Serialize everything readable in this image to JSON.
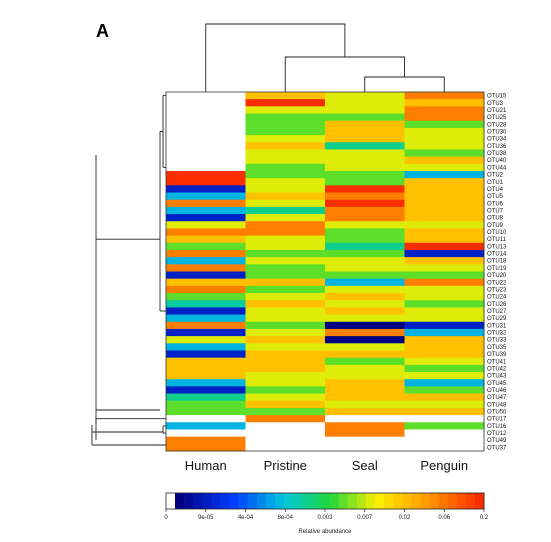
{
  "panel_label": "A",
  "chart_data": {
    "type": "heatmap",
    "title": "",
    "columns": [
      "Human",
      "Pristine",
      "Seal",
      "Penguin"
    ],
    "rows": [
      "OTU15",
      "OTU3",
      "OTU21",
      "OTU25",
      "OTU28",
      "OTU30",
      "OTU34",
      "OTU36",
      "OTU38",
      "OTU40",
      "OTU44",
      "OTU2",
      "OTU1",
      "OTU4",
      "OTU5",
      "OTU6",
      "OTU7",
      "OTU8",
      "OTU9",
      "OTU10",
      "OTU11",
      "OTU13",
      "OTU14",
      "OTU18",
      "OTU19",
      "OTU20",
      "OTU22",
      "OTU23",
      "OTU24",
      "OTU26",
      "OTU27",
      "OTU29",
      "OTU31",
      "OTU32",
      "OTU33",
      "OTU35",
      "OTU39",
      "OTU41",
      "OTU42",
      "OTU43",
      "OTU45",
      "OTU46",
      "OTU47",
      "OTU48",
      "OTU50",
      "OTU17",
      "OTU16",
      "OTU12",
      "OTU49",
      "OTU37"
    ],
    "values": [
      [
        0,
        0.02,
        0.007,
        0.06
      ],
      [
        0,
        0.2,
        0.007,
        0.02
      ],
      [
        0,
        0.007,
        0.007,
        0.06
      ],
      [
        0,
        0.003,
        0.003,
        0.06
      ],
      [
        0,
        0.003,
        0.02,
        0.003
      ],
      [
        0,
        0.003,
        0.02,
        0.007
      ],
      [
        0,
        0.007,
        0.02,
        0.007
      ],
      [
        0,
        0.02,
        0.001,
        0.007
      ],
      [
        0,
        0.007,
        0.007,
        0.003
      ],
      [
        0,
        0.007,
        0.007,
        0.02
      ],
      [
        0,
        0.003,
        0.007,
        0.007
      ],
      [
        0.2,
        0.003,
        0.003,
        0.0004
      ],
      [
        0.2,
        0.007,
        0.003,
        0.02
      ],
      [
        5e-05,
        0.007,
        0.2,
        0.02
      ],
      [
        0.0004,
        0.02,
        0.06,
        0.02
      ],
      [
        0.06,
        0.007,
        0.2,
        0.02
      ],
      [
        0.0004,
        0.001,
        0.06,
        0.02
      ],
      [
        5e-05,
        0.007,
        0.06,
        0.02
      ],
      [
        0.007,
        0.06,
        0.007,
        0.007
      ],
      [
        0.06,
        0.06,
        0.003,
        0.02
      ],
      [
        0.02,
        0.007,
        0.003,
        0.02
      ],
      [
        0.003,
        0.007,
        0.001,
        0.2
      ],
      [
        0.06,
        0.003,
        0.003,
        5e-05
      ],
      [
        0.0004,
        0.007,
        0.007,
        0.02
      ],
      [
        0.06,
        0.003,
        0.007,
        0.007
      ],
      [
        5e-05,
        0.003,
        0.003,
        0.003
      ],
      [
        0.02,
        0.02,
        0.0004,
        0.06
      ],
      [
        0.06,
        0.003,
        0.007,
        0.007
      ],
      [
        0.003,
        0.007,
        0.02,
        0.007
      ],
      [
        0.0008,
        0.02,
        0.007,
        0.003
      ],
      [
        5e-05,
        0.007,
        0.02,
        0.007
      ],
      [
        0.0004,
        0.007,
        0.007,
        0.007
      ],
      [
        0.06,
        0.003,
        2e-05,
        5e-05
      ],
      [
        5e-05,
        0.007,
        0.06,
        0.0004
      ],
      [
        0.007,
        0.02,
        2e-05,
        0.02
      ],
      [
        0.0004,
        0.007,
        0.007,
        0.02
      ],
      [
        5e-05,
        0.02,
        0.02,
        0.02
      ],
      [
        0.02,
        0.02,
        0.003,
        0.007
      ],
      [
        0.02,
        0.02,
        0.007,
        0.003
      ],
      [
        0.02,
        0.007,
        0.007,
        0.007
      ],
      [
        0.0004,
        0.007,
        0.02,
        0.0004
      ],
      [
        5e-05,
        0.003,
        0.02,
        0.003
      ],
      [
        0.001,
        0.007,
        0.02,
        0.02
      ],
      [
        0.003,
        0.02,
        0.007,
        0.007
      ],
      [
        0.003,
        0.003,
        0.02,
        0.02
      ],
      [
        0,
        0.06,
        0,
        0
      ],
      [
        0.0004,
        0,
        0.06,
        0.003
      ],
      [
        0,
        0,
        0.06,
        0
      ],
      [
        0.06,
        0,
        0,
        0
      ],
      [
        0.06,
        0,
        0,
        0
      ]
    ],
    "colorbar": {
      "label": "Relative abundance",
      "tick_labels": [
        "0",
        "9e-05",
        "4e-04",
        "8e-04",
        "0.003",
        "0.007",
        "0.02",
        "0.06",
        "0.2"
      ]
    }
  }
}
